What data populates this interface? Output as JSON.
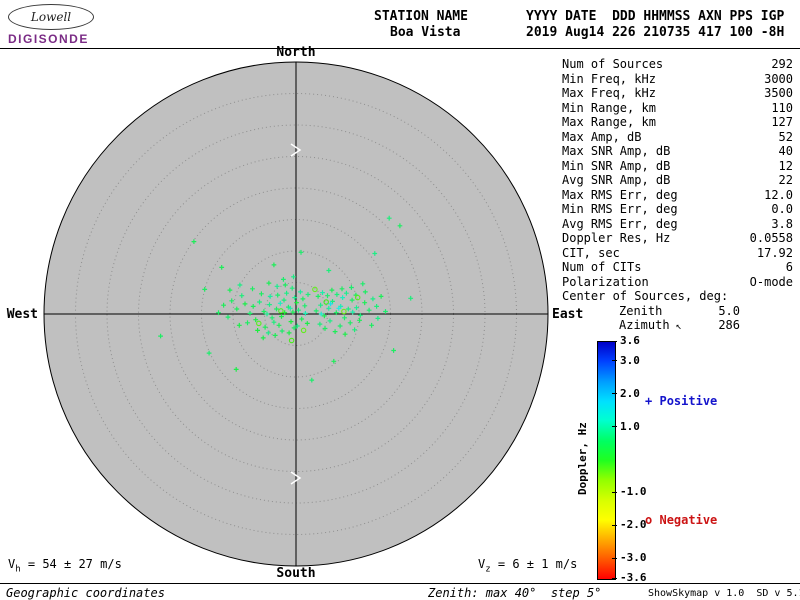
{
  "logo": {
    "name": "Lowell",
    "brand": "DIGISONDE"
  },
  "header": {
    "station_label": "STATION NAME",
    "station_value": "Boa Vista",
    "datetime_label": "YYYY DATE  DDD HHMMSS AXN PPS IGP",
    "datetime_value": "2019 Aug14 226 210735 417 100 -8H"
  },
  "compass": {
    "north": "North",
    "south": "South",
    "west": "West",
    "east": "East"
  },
  "stats": {
    "rows": [
      {
        "label": "Num of Sources",
        "value": "292"
      },
      {
        "label": "Min Freq, kHz",
        "value": "3000"
      },
      {
        "label": "Max Freq, kHz",
        "value": "3500"
      },
      {
        "label": "Min Range, km",
        "value": "110"
      },
      {
        "label": "Max Range, km",
        "value": "127"
      },
      {
        "label": "Max Amp, dB",
        "value": "52"
      },
      {
        "label": "Max SNR Amp, dB",
        "value": "40"
      },
      {
        "label": "Min SNR Amp, dB",
        "value": "12"
      },
      {
        "label": "Avg SNR Amp, dB",
        "value": "22"
      },
      {
        "label": "Max RMS Err, deg",
        "value": "12.0"
      },
      {
        "label": "Min RMS Err, deg",
        "value": "0.0"
      },
      {
        "label": "Avg RMS Err, deg",
        "value": "3.8"
      },
      {
        "label": "Doppler Res, Hz",
        "value": "0.0558"
      },
      {
        "label": "CIT, sec",
        "value": "17.92"
      },
      {
        "label": "Num of CITs",
        "value": "6"
      },
      {
        "label": "Polarization",
        "value": "O-mode"
      },
      {
        "label": "Center of Sources, deg:",
        "value": ""
      },
      {
        "label": "Zenith",
        "value": "5.0",
        "indent": true
      },
      {
        "label": "Azimuth",
        "value": "286",
        "indent": true,
        "icon": "↖"
      }
    ]
  },
  "legend": {
    "positive_marker": "+",
    "positive_label": "Positive",
    "positive_color": "#1414cc",
    "negative_marker": "o",
    "negative_label": "Negative",
    "negative_color": "#cc1414"
  },
  "colorbar": {
    "label": "Doppler, Hz",
    "max": 3.6,
    "min": -3.6,
    "ticks": [
      3.6,
      3.0,
      2.0,
      1.0,
      -1.0,
      -2.0,
      -3.0,
      -3.6
    ]
  },
  "footer": {
    "vh_prefix": "V",
    "vh_sub": "h",
    "vh_rest": " = 54 ± 27 m/s",
    "vz_prefix": "V",
    "vz_sub": "z",
    "vz_rest": " = 6 ± 1 m/s",
    "coordinates_note": "Geographic coordinates",
    "zenith_note": "Zenith: max 40°  step 5°",
    "version": "ShowSkymap v 1.0  SD v 5.1"
  },
  "colors": {
    "disc_gray": "#c0c0c0",
    "ring_gray": "#8e8e8e"
  },
  "chart_data": {
    "type": "scatter",
    "projection": "polar skymap (zenith angle / azimuth), geographic coordinates",
    "zenith_max_deg": 40,
    "zenith_step_deg": 5,
    "doppler_range_hz": [
      -3.6,
      3.6
    ],
    "center_of_sources": {
      "zenith_deg": 5.0,
      "azimuth_deg": 286
    },
    "num_sources_reported": 292,
    "points_east_north_doppler": [
      [
        -0.5,
        0.3,
        0.5
      ],
      [
        -1.2,
        1.1,
        0.7
      ],
      [
        -2.3,
        -0.4,
        0.4
      ],
      [
        -3.1,
        0.8,
        0.6
      ],
      [
        -4.2,
        1.5,
        0.9
      ],
      [
        -0.8,
        -1.2,
        0.3
      ],
      [
        -1.9,
        2.2,
        0.8
      ],
      [
        -2.7,
        -1.8,
        0.5
      ],
      [
        -3.8,
        -0.6,
        0.7
      ],
      [
        -5.1,
        0.4,
        0.6
      ],
      [
        -5.8,
        1.9,
        0.8
      ],
      [
        -6.4,
        -0.9,
        0.4
      ],
      [
        -4.9,
        -2.1,
        0.5
      ],
      [
        -0.2,
        2.6,
        1.0
      ],
      [
        -1.5,
        3.3,
        0.9
      ],
      [
        -2.9,
        3.0,
        0.7
      ],
      [
        -4.1,
        2.8,
        1.1
      ],
      [
        -5.5,
        3.2,
        0.6
      ],
      [
        -6.8,
        1.2,
        0.5
      ],
      [
        -7.3,
        0.1,
        0.7
      ],
      [
        -8.1,
        1.6,
        0.4
      ],
      [
        -7.7,
        -1.4,
        0.6
      ],
      [
        -6.1,
        -2.6,
        0.3
      ],
      [
        -0.9,
        0.9,
        1.2
      ],
      [
        -1.8,
        0.2,
        0.2
      ],
      [
        -2.5,
        1.7,
        1.4
      ],
      [
        -3.5,
        -1.3,
        0.8
      ],
      [
        -4.6,
        0.0,
        1.0
      ],
      [
        -0.3,
        -2.2,
        0.6
      ],
      [
        -1.1,
        -3.0,
        0.4
      ],
      [
        -2.2,
        -2.7,
        0.7
      ],
      [
        -3.3,
        -3.4,
        0.5
      ],
      [
        -4.4,
        -3.0,
        0.9
      ],
      [
        -5.2,
        -3.8,
        0.4
      ],
      [
        -0.6,
        4.1,
        0.8
      ],
      [
        -1.7,
        4.6,
        0.6
      ],
      [
        -3.0,
        4.4,
        1.0
      ],
      [
        -4.3,
        4.9,
        0.5
      ],
      [
        -2.0,
        5.5,
        0.7
      ],
      [
        -0.4,
        5.9,
        0.9
      ],
      [
        -6.9,
        4.0,
        0.6
      ],
      [
        -8.6,
        2.9,
        0.8
      ],
      [
        -9.4,
        0.8,
        0.5
      ],
      [
        -10.2,
        2.1,
        0.6
      ],
      [
        -9.0,
        -1.8,
        0.4
      ],
      [
        -10.8,
        -0.5,
        0.7
      ],
      [
        -11.5,
        1.4,
        0.5
      ],
      [
        -12.3,
        0.2,
        0.6
      ],
      [
        -8.9,
        4.6,
        0.9
      ],
      [
        -10.5,
        3.8,
        0.5
      ],
      [
        0.4,
        0.6,
        0.8
      ],
      [
        0.9,
        -0.8,
        0.5
      ],
      [
        1.4,
        1.3,
        0.7
      ],
      [
        0.2,
        -1.9,
        0.9
      ],
      [
        1.1,
        2.4,
        0.6
      ],
      [
        0.7,
        3.5,
        1.1
      ],
      [
        1.8,
        -1.5,
        0.4
      ],
      [
        1.5,
        0.1,
        1.3
      ],
      [
        0.1,
        1.8,
        0.3
      ],
      [
        1.9,
        3.1,
        0.8
      ],
      [
        3.2,
        0.5,
        0.7
      ],
      [
        3.9,
        1.4,
        0.9
      ],
      [
        4.5,
        -0.3,
        0.5
      ],
      [
        5.2,
        0.9,
        1.1
      ],
      [
        5.8,
        2.0,
        0.8
      ],
      [
        6.4,
        0.2,
        0.6
      ],
      [
        7.1,
        1.2,
        1.3
      ],
      [
        7.7,
        -0.6,
        0.7
      ],
      [
        8.3,
        0.8,
        0.9
      ],
      [
        8.9,
        2.2,
        0.6
      ],
      [
        9.6,
        1.0,
        1.0
      ],
      [
        10.2,
        -0.2,
        0.8
      ],
      [
        10.9,
        1.8,
        0.5
      ],
      [
        11.6,
        0.6,
        0.7
      ],
      [
        12.2,
        2.4,
        0.9
      ],
      [
        3.5,
        2.8,
        0.6
      ],
      [
        4.2,
        3.4,
        1.2
      ],
      [
        5.0,
        2.9,
        0.7
      ],
      [
        5.7,
        3.8,
        0.5
      ],
      [
        6.5,
        3.1,
        0.8
      ],
      [
        7.3,
        4.0,
        0.6
      ],
      [
        8.0,
        3.3,
        1.0
      ],
      [
        8.8,
        4.2,
        0.7
      ],
      [
        9.5,
        3.0,
        0.5
      ],
      [
        3.8,
        -1.6,
        0.8
      ],
      [
        4.6,
        -2.3,
        0.6
      ],
      [
        5.4,
        -1.1,
        0.9
      ],
      [
        6.2,
        -2.8,
        0.5
      ],
      [
        7.0,
        -1.9,
        0.7
      ],
      [
        7.8,
        -3.2,
        0.4
      ],
      [
        8.6,
        -1.4,
        0.6
      ],
      [
        9.3,
        -2.5,
        0.8
      ],
      [
        10.1,
        -1.0,
        0.5
      ],
      [
        4.0,
        0.0,
        1.5
      ],
      [
        6.8,
        0.9,
        1.7
      ],
      [
        5.5,
        1.6,
        1.9
      ],
      [
        7.4,
        2.6,
        1.4
      ],
      [
        9.0,
        0.3,
        1.2
      ],
      [
        11.0,
        3.5,
        0.6
      ],
      [
        12.8,
        1.2,
        0.8
      ],
      [
        13.5,
        2.8,
        0.5
      ],
      [
        14.2,
        0.4,
        0.7
      ],
      [
        12.0,
        -1.8,
        0.6
      ],
      [
        13.0,
        -0.7,
        0.9
      ],
      [
        10.6,
        4.8,
        0.7
      ],
      [
        -2.4,
        0.5,
        -0.4
      ],
      [
        1.2,
        -2.6,
        -0.6
      ],
      [
        4.8,
        1.9,
        -0.3
      ],
      [
        -5.9,
        -1.5,
        -0.5
      ],
      [
        7.6,
        0.4,
        -0.7
      ],
      [
        -0.7,
        -4.2,
        -0.4
      ],
      [
        9.8,
        2.6,
        -0.5
      ],
      [
        3.0,
        3.9,
        -0.6
      ],
      [
        -21.5,
        -3.5,
        0.6
      ],
      [
        -16.2,
        11.5,
        0.5
      ],
      [
        -13.8,
        -6.2,
        0.7
      ],
      [
        14.8,
        15.2,
        0.8
      ],
      [
        16.5,
        14.0,
        0.6
      ],
      [
        12.5,
        9.6,
        0.9
      ],
      [
        -11.8,
        7.4,
        0.5
      ],
      [
        15.5,
        -5.8,
        0.6
      ],
      [
        -9.5,
        -8.8,
        0.4
      ],
      [
        2.5,
        -10.5,
        0.7
      ],
      [
        6.0,
        -7.5,
        0.5
      ],
      [
        18.2,
        2.5,
        0.8
      ],
      [
        -14.5,
        3.9,
        0.6
      ],
      [
        0.8,
        9.8,
        0.7
      ],
      [
        -3.5,
        7.8,
        0.5
      ],
      [
        5.2,
        6.9,
        0.8
      ]
    ]
  }
}
